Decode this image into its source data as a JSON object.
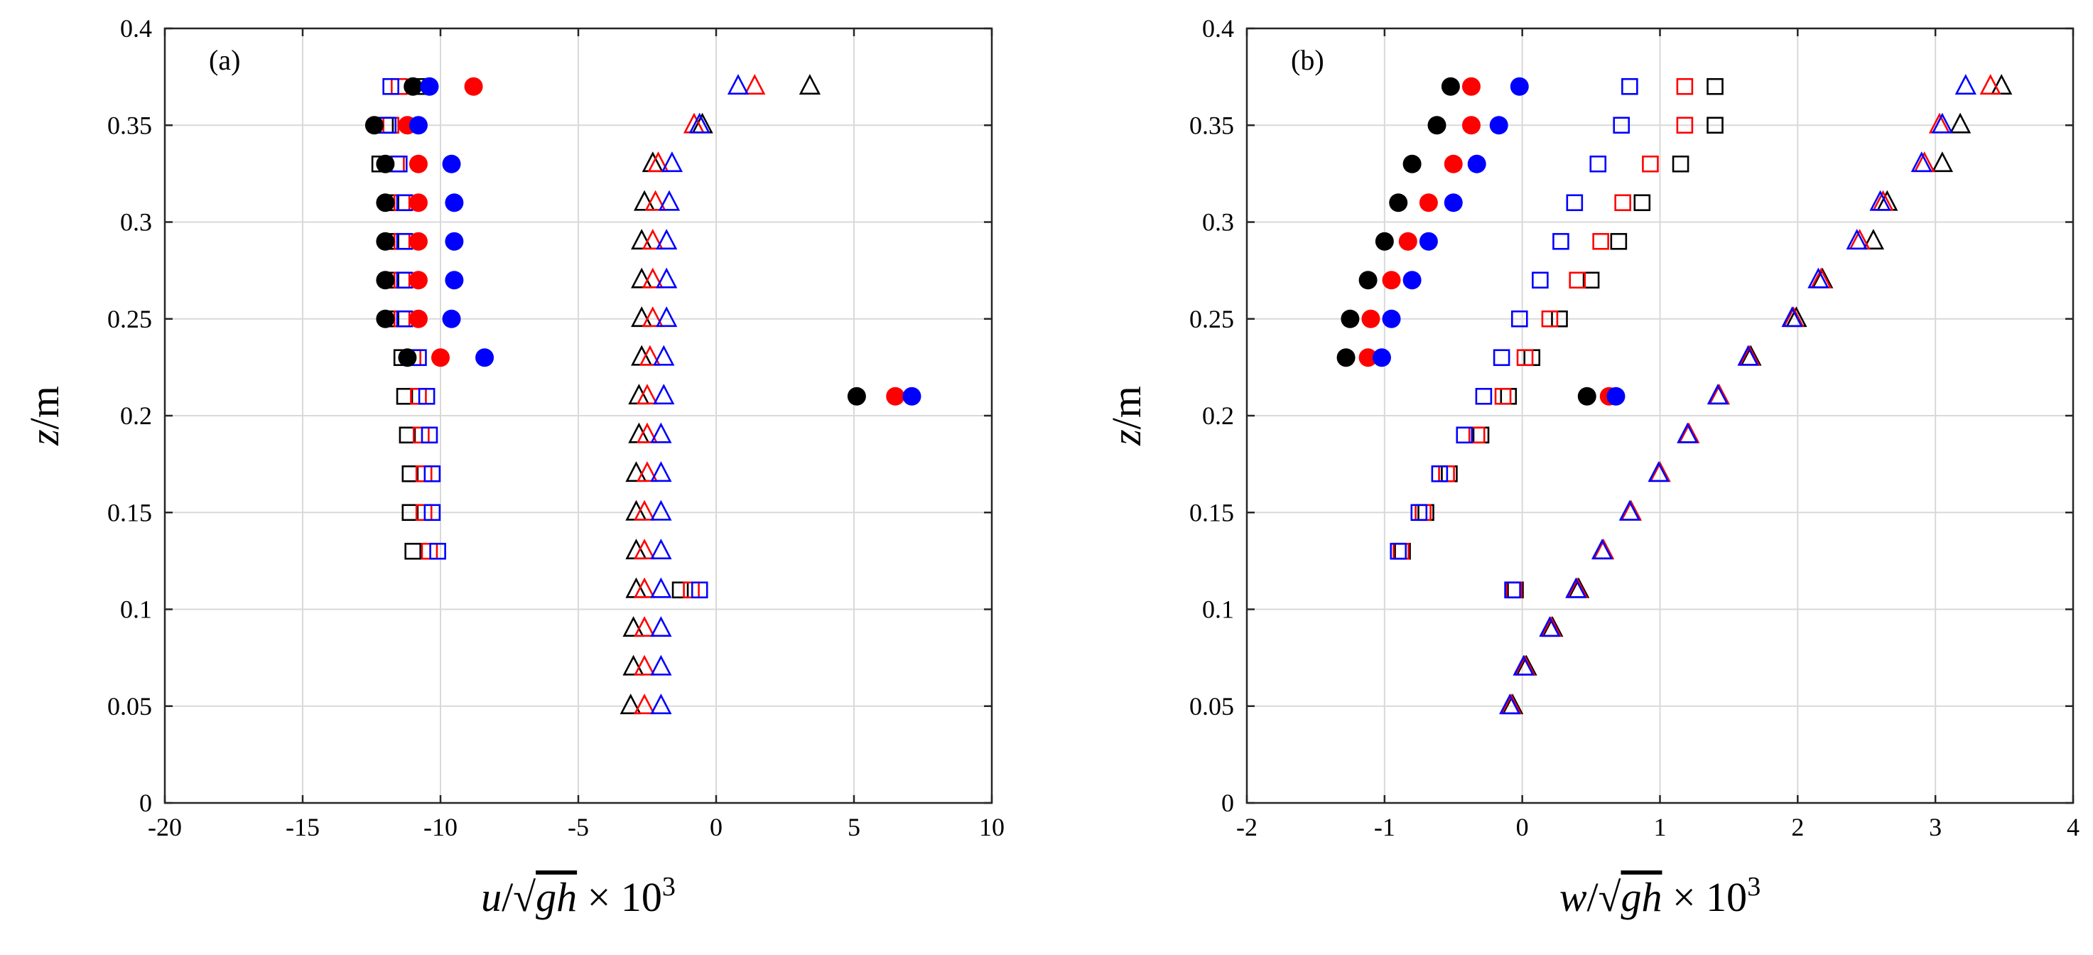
{
  "chart_data": [
    {
      "type": "scatter",
      "panel_label": "(a)",
      "xlabel": "u/√gh × 10³",
      "xlabel_parts": {
        "var": "u",
        "sep": "/",
        "radical": "√",
        "radicand": "gh",
        "times": " × 10",
        "exp": "3"
      },
      "ylabel": "z/m",
      "ylabel_parts": {
        "var": "z",
        "unit": "/m"
      },
      "xlim": [
        -20,
        10
      ],
      "ylim": [
        0,
        0.4
      ],
      "xticks": [
        -20,
        -15,
        -10,
        -5,
        0,
        5,
        10
      ],
      "xtick_labels": [
        "-20",
        "-15",
        "-10",
        "-5",
        "0",
        "5",
        "10"
      ],
      "yticks": [
        0,
        0.05,
        0.1,
        0.15,
        0.2,
        0.25,
        0.3,
        0.35,
        0.4
      ],
      "ytick_labels": [
        "0",
        "0.05",
        "0.1",
        "0.15",
        "0.2",
        "0.25",
        "0.3",
        "0.35",
        "0.4"
      ],
      "grid": true,
      "series": [
        {
          "name": "filled circles, black",
          "marker": "circle-filled",
          "color": "#000000",
          "x": [
            -11.0,
            -12.4,
            -12.0,
            -12.0,
            -12.0,
            -12.0,
            -12.0,
            -11.2,
            5.1
          ],
          "y": [
            0.37,
            0.35,
            0.33,
            0.31,
            0.29,
            0.27,
            0.25,
            0.23,
            0.21
          ]
        },
        {
          "name": "filled circles, red",
          "marker": "circle-filled",
          "color": "#ff0000",
          "x": [
            -8.8,
            -11.2,
            -10.8,
            -10.8,
            -10.8,
            -10.8,
            -10.8,
            -10.0,
            6.5
          ],
          "y": [
            0.37,
            0.35,
            0.33,
            0.31,
            0.29,
            0.27,
            0.25,
            0.23,
            0.21
          ]
        },
        {
          "name": "filled circles, blue",
          "marker": "circle-filled",
          "color": "#0000ff",
          "x": [
            -10.4,
            -10.8,
            -9.6,
            -9.5,
            -9.5,
            -9.5,
            -9.6,
            -8.4,
            7.1
          ],
          "y": [
            0.37,
            0.35,
            0.33,
            0.31,
            0.29,
            0.27,
            0.25,
            0.23,
            0.21
          ]
        },
        {
          "name": "open squares, black",
          "marker": "square-open",
          "color": "#000000",
          "x": [
            -10.6,
            -12.0,
            -12.2,
            -11.8,
            -11.8,
            -11.8,
            -11.8,
            -11.4,
            -11.3,
            -11.2,
            -11.1,
            -11.1,
            -11.0,
            -1.3
          ],
          "y": [
            0.37,
            0.35,
            0.33,
            0.31,
            0.29,
            0.27,
            0.25,
            0.23,
            0.21,
            0.19,
            0.17,
            0.15,
            0.13,
            0.11
          ]
        },
        {
          "name": "open squares, red",
          "marker": "square-open",
          "color": "#ff0000",
          "x": [
            -11.5,
            -11.8,
            -11.6,
            -11.4,
            -11.4,
            -11.4,
            -11.4,
            -11.0,
            -10.8,
            -10.7,
            -10.6,
            -10.6,
            -10.4,
            -0.9
          ],
          "y": [
            0.37,
            0.35,
            0.33,
            0.31,
            0.29,
            0.27,
            0.25,
            0.23,
            0.21,
            0.19,
            0.17,
            0.15,
            0.13,
            0.11
          ]
        },
        {
          "name": "open squares, blue",
          "marker": "square-open",
          "color": "#0000ff",
          "x": [
            -11.8,
            -11.9,
            -11.5,
            -11.3,
            -11.3,
            -11.3,
            -11.3,
            -10.8,
            -10.5,
            -10.4,
            -10.3,
            -10.3,
            -10.1,
            -0.6
          ],
          "y": [
            0.37,
            0.35,
            0.33,
            0.31,
            0.29,
            0.27,
            0.25,
            0.23,
            0.21,
            0.19,
            0.17,
            0.15,
            0.13,
            0.11
          ]
        },
        {
          "name": "open triangles, black",
          "marker": "triangle-open",
          "color": "#000000",
          "x": [
            3.4,
            -0.5,
            -2.3,
            -2.6,
            -2.7,
            -2.7,
            -2.7,
            -2.7,
            -2.8,
            -2.8,
            -2.9,
            -2.9,
            -2.9,
            -2.9,
            -3.0,
            -3.0,
            -3.1
          ],
          "y": [
            0.37,
            0.35,
            0.33,
            0.31,
            0.29,
            0.27,
            0.25,
            0.23,
            0.21,
            0.19,
            0.17,
            0.15,
            0.13,
            0.11,
            0.09,
            0.07,
            0.05
          ]
        },
        {
          "name": "open triangles, red",
          "marker": "triangle-open",
          "color": "#ff0000",
          "x": [
            1.4,
            -0.8,
            -2.1,
            -2.2,
            -2.3,
            -2.3,
            -2.3,
            -2.4,
            -2.5,
            -2.5,
            -2.5,
            -2.6,
            -2.6,
            -2.6,
            -2.6,
            -2.6,
            -2.6
          ],
          "y": [
            0.37,
            0.35,
            0.33,
            0.31,
            0.29,
            0.27,
            0.25,
            0.23,
            0.21,
            0.19,
            0.17,
            0.15,
            0.13,
            0.11,
            0.09,
            0.07,
            0.05
          ]
        },
        {
          "name": "open triangles, blue",
          "marker": "triangle-open",
          "color": "#0000ff",
          "x": [
            0.8,
            -0.6,
            -1.6,
            -1.7,
            -1.8,
            -1.8,
            -1.8,
            -1.9,
            -1.9,
            -2.0,
            -2.0,
            -2.0,
            -2.0,
            -2.0,
            -2.0,
            -2.0,
            -2.0
          ],
          "y": [
            0.37,
            0.35,
            0.33,
            0.31,
            0.29,
            0.27,
            0.25,
            0.23,
            0.21,
            0.19,
            0.17,
            0.15,
            0.13,
            0.11,
            0.09,
            0.07,
            0.05
          ]
        }
      ]
    },
    {
      "type": "scatter",
      "panel_label": "(b)",
      "xlabel": "w/√gh × 10³",
      "xlabel_parts": {
        "var": "w",
        "sep": "/",
        "radical": "√",
        "radicand": "gh",
        "times": " × 10",
        "exp": "3"
      },
      "ylabel": "z/m",
      "ylabel_parts": {
        "var": "z",
        "unit": "/m"
      },
      "xlim": [
        -2,
        4
      ],
      "ylim": [
        0,
        0.4
      ],
      "xticks": [
        -2,
        -1,
        0,
        1,
        2,
        3,
        4
      ],
      "xtick_labels": [
        "-2",
        "-1",
        "0",
        "1",
        "2",
        "3",
        "4"
      ],
      "yticks": [
        0,
        0.05,
        0.1,
        0.15,
        0.2,
        0.25,
        0.3,
        0.35,
        0.4
      ],
      "ytick_labels": [
        "0",
        "0.05",
        "0.1",
        "0.15",
        "0.2",
        "0.25",
        "0.3",
        "0.35",
        "0.4"
      ],
      "grid": true,
      "series": [
        {
          "name": "filled circles, black",
          "marker": "circle-filled",
          "color": "#000000",
          "x": [
            -0.52,
            -0.62,
            -0.8,
            -0.9,
            -1.0,
            -1.12,
            -1.25,
            -1.28,
            0.47
          ],
          "y": [
            0.37,
            0.35,
            0.33,
            0.31,
            0.29,
            0.27,
            0.25,
            0.23,
            0.21
          ]
        },
        {
          "name": "filled circles, red",
          "marker": "circle-filled",
          "color": "#ff0000",
          "x": [
            -0.37,
            -0.37,
            -0.5,
            -0.68,
            -0.83,
            -0.95,
            -1.1,
            -1.12,
            0.63
          ],
          "y": [
            0.37,
            0.35,
            0.33,
            0.31,
            0.29,
            0.27,
            0.25,
            0.23,
            0.21
          ]
        },
        {
          "name": "filled circles, blue",
          "marker": "circle-filled",
          "color": "#0000ff",
          "x": [
            -0.02,
            -0.17,
            -0.33,
            -0.5,
            -0.68,
            -0.8,
            -0.95,
            -1.02,
            0.68
          ],
          "y": [
            0.37,
            0.35,
            0.33,
            0.31,
            0.29,
            0.27,
            0.25,
            0.23,
            0.21
          ]
        },
        {
          "name": "open squares, black",
          "marker": "square-open",
          "color": "#000000",
          "x": [
            1.4,
            1.4,
            1.15,
            0.87,
            0.7,
            0.5,
            0.27,
            0.07,
            -0.1,
            -0.3,
            -0.53,
            -0.7,
            -0.87,
            -0.05
          ],
          "y": [
            0.37,
            0.35,
            0.33,
            0.31,
            0.29,
            0.27,
            0.25,
            0.23,
            0.21,
            0.19,
            0.17,
            0.15,
            0.13,
            0.11
          ]
        },
        {
          "name": "open squares, red",
          "marker": "square-open",
          "color": "#ff0000",
          "x": [
            1.18,
            1.18,
            0.93,
            0.73,
            0.57,
            0.4,
            0.2,
            0.02,
            -0.14,
            -0.33,
            -0.55,
            -0.72,
            -0.88,
            -0.06
          ],
          "y": [
            0.37,
            0.35,
            0.33,
            0.31,
            0.29,
            0.27,
            0.25,
            0.23,
            0.21,
            0.19,
            0.17,
            0.15,
            0.13,
            0.11
          ]
        },
        {
          "name": "open squares, blue",
          "marker": "square-open",
          "color": "#0000ff",
          "x": [
            0.78,
            0.72,
            0.55,
            0.38,
            0.28,
            0.13,
            -0.02,
            -0.15,
            -0.28,
            -0.42,
            -0.6,
            -0.75,
            -0.9,
            -0.07
          ],
          "y": [
            0.37,
            0.35,
            0.33,
            0.31,
            0.29,
            0.27,
            0.25,
            0.23,
            0.21,
            0.19,
            0.17,
            0.15,
            0.13,
            0.11
          ]
        },
        {
          "name": "open triangles, black",
          "marker": "triangle-open",
          "color": "#000000",
          "x": [
            3.48,
            3.18,
            3.05,
            2.65,
            2.55,
            2.18,
            1.99,
            1.66,
            1.43,
            1.21,
            1.0,
            0.79,
            0.59,
            0.41,
            0.22,
            0.03,
            -0.07
          ],
          "y": [
            0.37,
            0.35,
            0.33,
            0.31,
            0.29,
            0.27,
            0.25,
            0.23,
            0.21,
            0.19,
            0.17,
            0.15,
            0.13,
            0.11,
            0.09,
            0.07,
            0.05
          ]
        },
        {
          "name": "open triangles, red",
          "marker": "triangle-open",
          "color": "#ff0000",
          "x": [
            3.4,
            3.03,
            2.92,
            2.62,
            2.45,
            2.17,
            1.97,
            1.65,
            1.43,
            1.21,
            1.0,
            0.79,
            0.59,
            0.4,
            0.21,
            0.02,
            -0.08
          ],
          "y": [
            0.37,
            0.35,
            0.33,
            0.31,
            0.29,
            0.27,
            0.25,
            0.23,
            0.21,
            0.19,
            0.17,
            0.15,
            0.13,
            0.11,
            0.09,
            0.07,
            0.05
          ]
        },
        {
          "name": "open triangles, blue",
          "marker": "triangle-open",
          "color": "#0000ff",
          "x": [
            3.22,
            3.05,
            2.9,
            2.6,
            2.43,
            2.15,
            1.96,
            1.64,
            1.42,
            1.2,
            0.99,
            0.78,
            0.58,
            0.39,
            0.2,
            0.01,
            -0.09
          ],
          "y": [
            0.37,
            0.35,
            0.33,
            0.31,
            0.29,
            0.27,
            0.25,
            0.23,
            0.21,
            0.19,
            0.17,
            0.15,
            0.13,
            0.11,
            0.09,
            0.07,
            0.05
          ]
        }
      ]
    }
  ]
}
